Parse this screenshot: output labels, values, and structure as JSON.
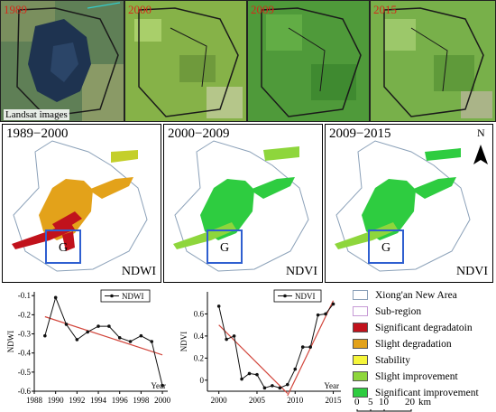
{
  "satellite": {
    "panels": [
      {
        "year": "1989"
      },
      {
        "year": "2000"
      },
      {
        "year": "2009"
      },
      {
        "year": "2015"
      }
    ],
    "caption": "Landsat images"
  },
  "maps": [
    {
      "period": "1989−2000",
      "index": "NDWI",
      "box_label": "G"
    },
    {
      "period": "2000−2009",
      "index": "NDVI",
      "box_label": "G"
    },
    {
      "period": "2009−2015",
      "index": "NDVI",
      "box_label": "G"
    }
  ],
  "north_label": "N",
  "legend": {
    "items": [
      {
        "label": "Xiong'an New Area",
        "color": "#ffffff",
        "border": "#8aa0b8"
      },
      {
        "label": "Sub-region",
        "color": "#ffffff",
        "border": "#c79bd6"
      },
      {
        "label": "Significant degradatoin",
        "color": "#c1121c",
        "border": "#555555"
      },
      {
        "label": "Slight degradation",
        "color": "#e3a21a",
        "border": "#555555"
      },
      {
        "label": "Stability",
        "color": "#f5f53a",
        "border": "#555555"
      },
      {
        "label": "Slight improvement",
        "color": "#8ed63c",
        "border": "#555555"
      },
      {
        "label": "Significant improvement",
        "color": "#2ecc40",
        "border": "#555555"
      }
    ],
    "scale_labels": [
      "0",
      "5",
      "10",
      "20"
    ],
    "scale_unit": "km"
  },
  "colors": {
    "significant_degradation": "#c1121c",
    "slight_degradation": "#e3a21a",
    "stability": "#f5f53a",
    "slight_improvement": "#8ed63c",
    "significant_improvement": "#2ecc40",
    "box": "#2f5fd0",
    "trend": "#d2463c"
  },
  "chart_data": [
    {
      "type": "line",
      "legend": "NDWI",
      "ylabel": "NDWI",
      "xlabel": "Year",
      "x": [
        1989,
        1990,
        1991,
        1992,
        1993,
        1994,
        1995,
        1996,
        1997,
        1998,
        1999,
        2000
      ],
      "y": [
        -0.31,
        -0.11,
        -0.25,
        -0.33,
        -0.29,
        -0.26,
        -0.26,
        -0.32,
        -0.34,
        -0.31,
        -0.34,
        -0.57
      ],
      "trend": [
        [
          1989,
          -0.21
        ],
        [
          2000,
          -0.41
        ]
      ],
      "xlim": [
        1988,
        2000.5
      ],
      "ylim": [
        -0.6,
        -0.08
      ],
      "xticks": [
        1988,
        1990,
        1992,
        1994,
        1996,
        1998,
        2000
      ],
      "yticks": [
        -0.1,
        -0.2,
        -0.3,
        -0.4,
        -0.5,
        -0.6
      ]
    },
    {
      "type": "line",
      "legend": "NDVI",
      "ylabel": "NDVI",
      "xlabel": "Year",
      "x": [
        2000,
        2001,
        2002,
        2003,
        2004,
        2005,
        2006,
        2007,
        2008,
        2009,
        2010,
        2011,
        2012,
        2013,
        2014,
        2015
      ],
      "y": [
        0.67,
        0.37,
        0.4,
        0.01,
        0.06,
        0.05,
        -0.07,
        -0.05,
        -0.07,
        -0.04,
        0.1,
        0.3,
        0.3,
        0.59,
        0.6,
        0.69
      ],
      "trend1": [
        [
          2000,
          0.5
        ],
        [
          2009,
          -0.12
        ]
      ],
      "trend2": [
        [
          2009,
          -0.14
        ],
        [
          2015,
          0.72
        ]
      ],
      "xlim": [
        1998.5,
        2016
      ],
      "ylim": [
        -0.1,
        0.8
      ],
      "xticks": [
        2000,
        2005,
        2010,
        2015
      ],
      "yticks": [
        0.6,
        0.4,
        0.2,
        0
      ]
    }
  ]
}
